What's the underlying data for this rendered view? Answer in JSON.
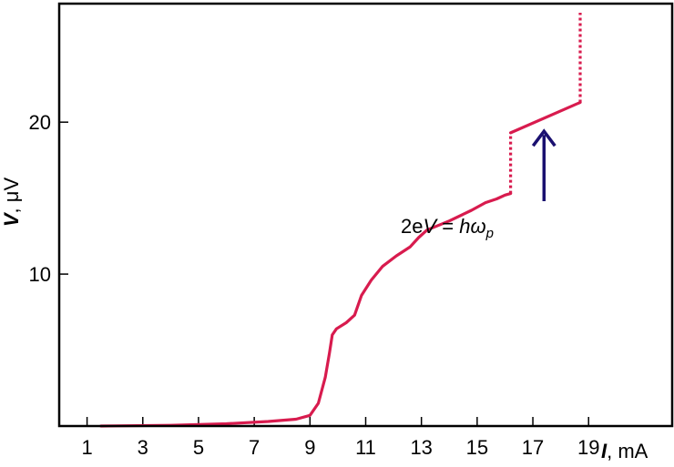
{
  "chart_data": {
    "type": "line",
    "xlabel": {
      "var": "I",
      "unit": ", mA"
    },
    "ylabel": {
      "var": "V",
      "unit": ", μV"
    },
    "xlim": [
      0,
      22
    ],
    "ylim": [
      0,
      27.8
    ],
    "x_ticks": [
      1,
      3,
      5,
      7,
      9,
      11,
      13,
      15,
      17,
      19
    ],
    "y_ticks": [
      10,
      20
    ],
    "grid": false,
    "colors": {
      "curve": "#d81b4e",
      "arrow": "#1a1070",
      "axes": "#000000"
    },
    "series": [
      {
        "style": "solid",
        "points": [
          [
            1.5,
            0.0
          ],
          [
            4,
            0.05
          ],
          [
            6,
            0.15
          ],
          [
            7.5,
            0.3
          ],
          [
            8.5,
            0.45
          ],
          [
            9.0,
            0.7
          ],
          [
            9.3,
            1.5
          ],
          [
            9.55,
            3.2
          ],
          [
            9.7,
            4.8
          ],
          [
            9.8,
            6.0
          ],
          [
            9.95,
            6.4
          ],
          [
            10.3,
            6.8
          ],
          [
            10.6,
            7.3
          ],
          [
            10.85,
            8.6
          ],
          [
            11.2,
            9.6
          ],
          [
            11.6,
            10.5
          ],
          [
            12.1,
            11.2
          ],
          [
            12.6,
            11.8
          ],
          [
            12.9,
            12.4
          ],
          [
            13.2,
            12.9
          ],
          [
            14.0,
            13.5
          ],
          [
            14.8,
            14.2
          ],
          [
            15.3,
            14.7
          ],
          [
            15.7,
            14.95
          ],
          [
            16.0,
            15.2
          ],
          [
            16.2,
            15.3
          ]
        ]
      },
      {
        "style": "dotted",
        "points": [
          [
            16.2,
            15.3
          ],
          [
            16.2,
            19.3
          ]
        ]
      },
      {
        "style": "solid",
        "points": [
          [
            16.2,
            19.3
          ],
          [
            18.7,
            21.3
          ]
        ]
      },
      {
        "style": "dotted",
        "points": [
          [
            18.7,
            21.3
          ],
          [
            18.7,
            27.2
          ]
        ]
      }
    ],
    "annotation": {
      "text_prefix": "2e",
      "text_v": "V",
      "text_mid": " = ",
      "text_h": "h",
      "text_omega": "ω",
      "text_sub": "p",
      "arrow_x": 17.4,
      "arrow_y_from": 14.8,
      "arrow_y_to": 19.4
    }
  }
}
